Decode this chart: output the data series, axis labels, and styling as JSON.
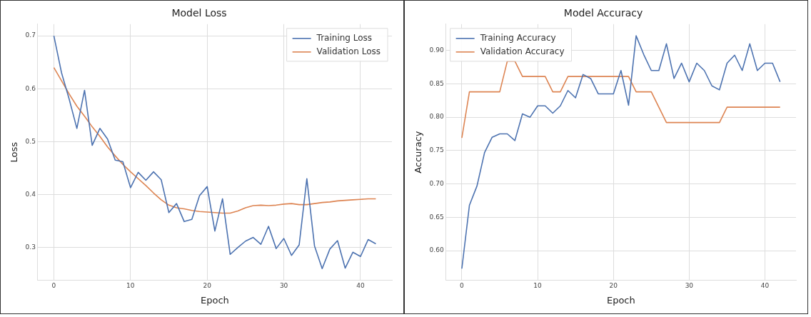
{
  "chart_data": [
    {
      "type": "line",
      "title": "Model Loss",
      "xlabel": "Epoch",
      "ylabel": "Loss",
      "x": [
        0,
        1,
        2,
        3,
        4,
        5,
        6,
        7,
        8,
        9,
        10,
        11,
        12,
        13,
        14,
        15,
        16,
        17,
        18,
        19,
        20,
        21,
        22,
        23,
        24,
        25,
        26,
        27,
        28,
        29,
        30,
        31,
        32,
        33,
        34,
        35,
        36,
        37,
        38,
        39,
        40,
        41,
        42
      ],
      "series": [
        {
          "name": "Training Loss",
          "color": "#4c72b0",
          "values": [
            0.7,
            0.63,
            0.58,
            0.525,
            0.597,
            0.493,
            0.525,
            0.505,
            0.465,
            0.462,
            0.413,
            0.442,
            0.427,
            0.443,
            0.428,
            0.366,
            0.383,
            0.349,
            0.353,
            0.398,
            0.415,
            0.331,
            0.392,
            0.287,
            0.3,
            0.312,
            0.319,
            0.306,
            0.34,
            0.298,
            0.317,
            0.285,
            0.305,
            0.43,
            0.303,
            0.26,
            0.297,
            0.313,
            0.261,
            0.291,
            0.283,
            0.315,
            0.307
          ]
        },
        {
          "name": "Validation Loss",
          "color": "#dd8452",
          "values": [
            0.64,
            0.615,
            0.59,
            0.567,
            0.548,
            0.528,
            0.51,
            0.49,
            0.473,
            0.457,
            0.443,
            0.43,
            0.417,
            0.403,
            0.39,
            0.38,
            0.375,
            0.373,
            0.37,
            0.368,
            0.367,
            0.366,
            0.365,
            0.365,
            0.369,
            0.375,
            0.379,
            0.38,
            0.379,
            0.38,
            0.382,
            0.383,
            0.381,
            0.381,
            0.383,
            0.385,
            0.386,
            0.388,
            0.389,
            0.39,
            0.391,
            0.392,
            0.392
          ]
        }
      ],
      "xlim": [
        -2.1,
        44.1
      ],
      "xticks": [
        0,
        10,
        20,
        30,
        40
      ],
      "ylim": [
        0.238,
        0.722
      ],
      "yticks": [
        0.3,
        0.4,
        0.5,
        0.6,
        0.7
      ],
      "grid": true,
      "legend": "top right"
    },
    {
      "type": "line",
      "title": "Model Accuracy",
      "xlabel": "Epoch",
      "ylabel": "Accuracy",
      "x": [
        0,
        1,
        2,
        3,
        4,
        5,
        6,
        7,
        8,
        9,
        10,
        11,
        12,
        13,
        14,
        15,
        16,
        17,
        18,
        19,
        20,
        21,
        22,
        23,
        24,
        25,
        26,
        27,
        28,
        29,
        30,
        31,
        32,
        33,
        34,
        35,
        36,
        37,
        38,
        39,
        40,
        41,
        42
      ],
      "series": [
        {
          "name": "Training Accuracy",
          "color": "#4c72b0",
          "values": [
            0.573,
            0.668,
            0.697,
            0.747,
            0.77,
            0.775,
            0.775,
            0.765,
            0.805,
            0.8,
            0.817,
            0.817,
            0.806,
            0.817,
            0.84,
            0.829,
            0.864,
            0.858,
            0.835,
            0.835,
            0.835,
            0.87,
            0.818,
            0.922,
            0.894,
            0.87,
            0.87,
            0.91,
            0.858,
            0.881,
            0.853,
            0.881,
            0.87,
            0.847,
            0.841,
            0.881,
            0.893,
            0.87,
            0.91,
            0.87,
            0.881,
            0.881,
            0.853
          ]
        },
        {
          "name": "Validation Accuracy",
          "color": "#dd8452",
          "values": [
            0.769,
            0.838,
            0.838,
            0.838,
            0.838,
            0.838,
            0.884,
            0.884,
            0.861,
            0.861,
            0.861,
            0.861,
            0.838,
            0.838,
            0.861,
            0.861,
            0.861,
            0.861,
            0.861,
            0.861,
            0.861,
            0.861,
            0.861,
            0.838,
            0.838,
            0.838,
            0.815,
            0.792,
            0.792,
            0.792,
            0.792,
            0.792,
            0.792,
            0.792,
            0.792,
            0.815,
            0.815,
            0.815,
            0.815,
            0.815,
            0.815,
            0.815,
            0.815
          ]
        }
      ],
      "xlim": [
        -2.1,
        44.1
      ],
      "xticks": [
        0,
        10,
        20,
        30,
        40
      ],
      "ylim": [
        0.5555,
        0.9395
      ],
      "yticks": [
        {
          "value": 0.6,
          "label": "0.60"
        },
        {
          "value": 0.65,
          "label": "0.65"
        },
        {
          "value": 0.7,
          "label": "0.70"
        },
        {
          "value": 0.75,
          "label": "0.75"
        },
        {
          "value": 0.8,
          "label": "0.80"
        },
        {
          "value": 0.85,
          "label": "0.85"
        },
        {
          "value": 0.9,
          "label": "0.90"
        }
      ],
      "grid": true,
      "legend": "top left"
    }
  ]
}
